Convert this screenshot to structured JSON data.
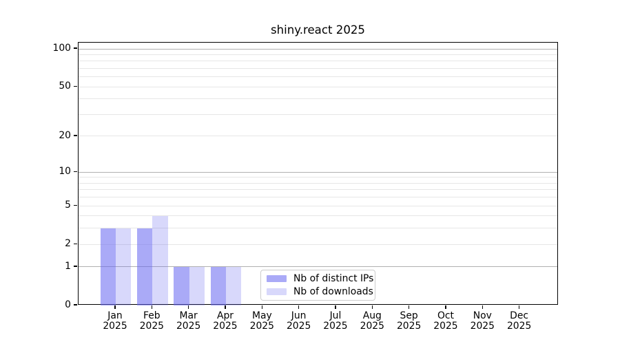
{
  "title": "shiny.react 2025",
  "chart_data": {
    "type": "bar",
    "title": "shiny.react 2025",
    "categories": [
      "Jan 2025",
      "Feb 2025",
      "Mar 2025",
      "Apr 2025",
      "May 2025",
      "Jun 2025",
      "Jul 2025",
      "Aug 2025",
      "Sep 2025",
      "Oct 2025",
      "Nov 2025",
      "Dec 2025"
    ],
    "x_tick_month_labels": [
      "Jan",
      "Feb",
      "Mar",
      "Apr",
      "May",
      "Jun",
      "Jul",
      "Aug",
      "Sep",
      "Oct",
      "Nov",
      "Dec"
    ],
    "x_tick_year_label": "2025",
    "series": [
      {
        "name": "Nb of distinct IPs",
        "color": "rgba(100,100,240,0.55)",
        "values": [
          3,
          3,
          1,
          1,
          0,
          0,
          0,
          0,
          0,
          0,
          0,
          0
        ]
      },
      {
        "name": "Nb of downloads",
        "color": "rgba(100,100,240,0.25)",
        "values": [
          3,
          4,
          1,
          1,
          0,
          0,
          0,
          0,
          0,
          0,
          0,
          0
        ]
      }
    ],
    "xlabel": "",
    "ylabel": "",
    "y_axis": {
      "scale": "log1p",
      "ticks": [
        0,
        1,
        2,
        5,
        10,
        20,
        50,
        100
      ],
      "max": 112,
      "grid_major": [
        1,
        10,
        100
      ],
      "grid_minor": [
        2,
        3,
        4,
        5,
        6,
        7,
        8,
        9,
        20,
        30,
        40,
        50,
        60,
        70,
        80,
        90
      ]
    },
    "grid": "on",
    "legend_position": "lower center",
    "colors": {
      "grid_major": "#b0b0b0",
      "grid_minor": "#e9e9e9",
      "spine": "#000000",
      "text": "#000000",
      "background": "#ffffff"
    }
  }
}
